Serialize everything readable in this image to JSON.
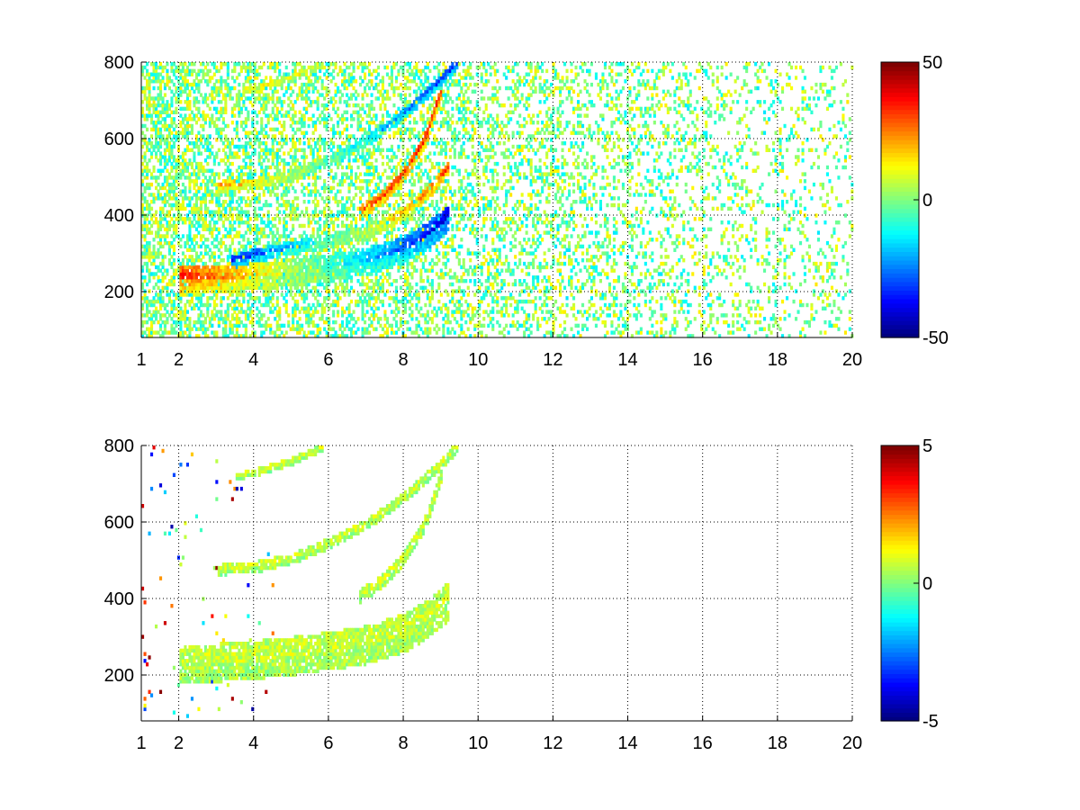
{
  "chart_data": [
    {
      "type": "heatmap",
      "title": "",
      "xlabel": "",
      "ylabel": "",
      "xlim": [
        1,
        20
      ],
      "ylim": [
        80,
        800
      ],
      "grid": true,
      "grid_style": "dotted",
      "xticks": [
        1,
        2,
        4,
        6,
        8,
        10,
        12,
        14,
        16,
        18,
        20
      ],
      "yticks": [
        200,
        400,
        600,
        800
      ],
      "colormap": "jet",
      "colorbar": {
        "clim": [
          -50,
          50
        ],
        "ticks": [
          -50,
          0,
          50
        ],
        "placement": "right"
      },
      "features": [
        {
          "kind": "band",
          "x": [
            2.0,
            3.0,
            4.0,
            5.0,
            6.0,
            7.0,
            8.0,
            8.6,
            9.2
          ],
          "y": [
            225,
            228,
            235,
            245,
            258,
            275,
            305,
            340,
            390
          ],
          "halfwidth": 35,
          "value_low_x": 40,
          "value_high_x": -45
        },
        {
          "kind": "band",
          "x": [
            3.4,
            4.0,
            5.0,
            6.0,
            7.0,
            8.0,
            8.6,
            9.2
          ],
          "y": [
            270,
            290,
            310,
            330,
            350,
            400,
            450,
            520
          ],
          "halfwidth": 18,
          "value_low_x": -40,
          "value_high_x": 35
        },
        {
          "kind": "band",
          "x": [
            3.0,
            4.0,
            5.0,
            6.0,
            7.0,
            8.0,
            8.8,
            9.4
          ],
          "y": [
            470,
            478,
            500,
            540,
            590,
            660,
            730,
            790
          ],
          "halfwidth": 14,
          "value_low_x": 25,
          "value_high_x": -40
        },
        {
          "kind": "band",
          "x": [
            3.5,
            4.0,
            5.0,
            5.8
          ],
          "y": [
            715,
            725,
            755,
            790
          ],
          "halfwidth": 10,
          "value_low_x": 15,
          "value_high_x": 10
        },
        {
          "kind": "band",
          "x": [
            6.8,
            7.4,
            8.0,
            8.6,
            9.0
          ],
          "y": [
            400,
            440,
            500,
            600,
            720
          ],
          "halfwidth": 18,
          "value_low_x": 30,
          "value_high_x": 40
        }
      ],
      "noise": {
        "x_range": [
          1,
          20
        ],
        "density_left": 0.55,
        "density_right": 0.12,
        "value_range": [
          -15,
          15
        ]
      }
    },
    {
      "type": "heatmap",
      "title": "",
      "xlabel": "",
      "ylabel": "",
      "xlim": [
        1,
        20
      ],
      "ylim": [
        80,
        800
      ],
      "grid": true,
      "grid_style": "dotted",
      "xticks": [
        1,
        2,
        4,
        6,
        8,
        10,
        12,
        14,
        16,
        18,
        20
      ],
      "yticks": [
        200,
        400,
        600,
        800
      ],
      "colormap": "jet",
      "colorbar": {
        "clim": [
          -5,
          5
        ],
        "ticks": [
          -5,
          0,
          5
        ],
        "placement": "right"
      },
      "features": [
        {
          "kind": "band",
          "x": [
            2.0,
            3.0,
            4.0,
            5.0,
            6.0,
            7.0,
            8.0,
            8.6,
            9.2
          ],
          "y": [
            225,
            228,
            235,
            245,
            258,
            275,
            305,
            340,
            390
          ],
          "halfwidth": 50,
          "value_low_x": 0.8,
          "value_high_x": 0.8
        },
        {
          "kind": "band",
          "x": [
            3.0,
            4.0,
            5.0,
            6.0,
            7.0,
            8.0,
            8.8,
            9.4
          ],
          "y": [
            470,
            478,
            500,
            540,
            590,
            660,
            730,
            790
          ],
          "halfwidth": 14,
          "value_low_x": 0.8,
          "value_high_x": 0.8
        },
        {
          "kind": "band",
          "x": [
            3.5,
            4.0,
            5.0,
            5.8
          ],
          "y": [
            715,
            725,
            755,
            790
          ],
          "halfwidth": 10,
          "value_low_x": 0.8,
          "value_high_x": 0.8
        },
        {
          "kind": "band",
          "x": [
            6.8,
            7.4,
            8.0,
            8.6,
            9.0
          ],
          "y": [
            400,
            440,
            500,
            600,
            720
          ],
          "halfwidth": 18,
          "value_low_x": 0.8,
          "value_high_x": 0.8
        }
      ],
      "noise": {
        "x_range": [
          1,
          4.5
        ],
        "density_left": 0.03,
        "density_right": 0.01,
        "value_range": [
          -5,
          5
        ]
      }
    }
  ]
}
